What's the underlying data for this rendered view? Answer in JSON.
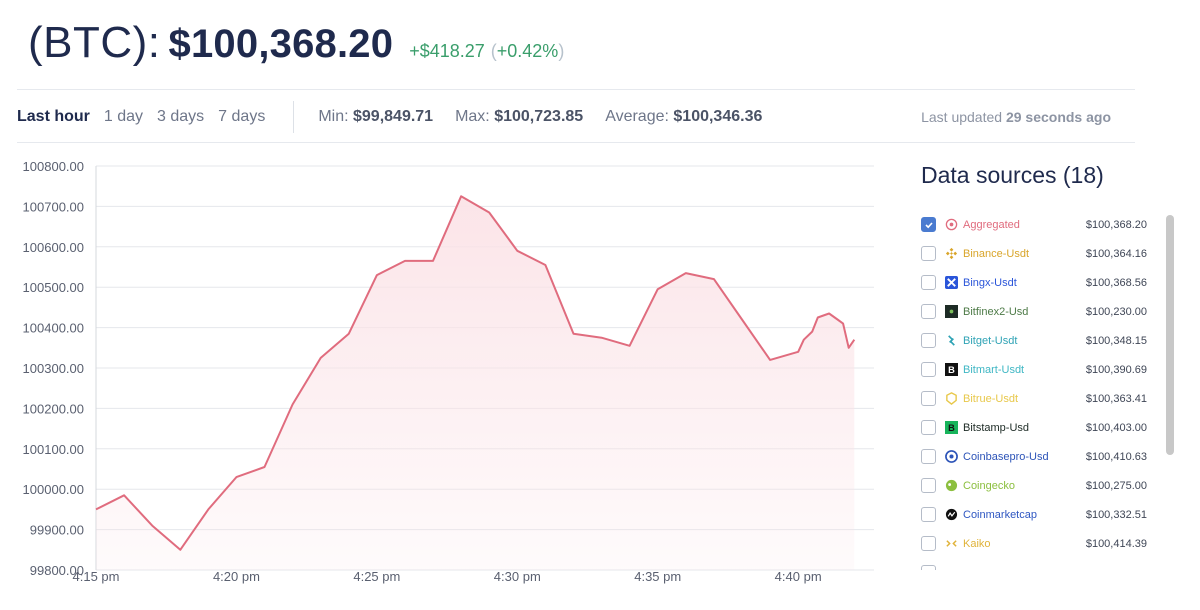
{
  "header": {
    "symbol": "(BTC):",
    "price": "$100,368.20",
    "change": "+$418.27",
    "pct_open": "(",
    "pct": "+0.42%",
    "pct_close": ")"
  },
  "toolbar": {
    "timeframes": [
      "Last hour",
      "1 day",
      "3 days",
      "7 days"
    ],
    "min_label": "Min:",
    "min_value": "$99,849.71",
    "max_label": "Max:",
    "max_value": "$100,723.85",
    "avg_label": "Average:",
    "avg_value": "$100,346.36",
    "updated_label": "Last updated",
    "updated_value": "29 seconds ago"
  },
  "chart_data": {
    "type": "area",
    "title": "",
    "xlabel": "",
    "ylabel": "",
    "ylim": [
      99800,
      100800
    ],
    "xlim": [
      0,
      27.7
    ],
    "y_ticks": [
      "100800.00",
      "100700.00",
      "100600.00",
      "100500.00",
      "100400.00",
      "100300.00",
      "100200.00",
      "100100.00",
      "100000.00",
      "99900.00",
      "99800.00"
    ],
    "x_ticks": [
      {
        "label": "4:15 pm",
        "x": 0
      },
      {
        "label": "4:20 pm",
        "x": 5
      },
      {
        "label": "4:25 pm",
        "x": 10
      },
      {
        "label": "4:30 pm",
        "x": 15
      },
      {
        "label": "4:35 pm",
        "x": 20
      },
      {
        "label": "4:40 pm",
        "x": 25
      }
    ],
    "line_color": "#e06c7e",
    "fill_color": "#fbe3e7",
    "series": [
      {
        "name": "Aggregated",
        "x": [
          0,
          1,
          2,
          3,
          4,
          5,
          6,
          7,
          8,
          9,
          10,
          11,
          12,
          13,
          14,
          15,
          16,
          17,
          18,
          19,
          20,
          21,
          22,
          23,
          24,
          25,
          25.2,
          25.5,
          25.7,
          25.9,
          26.1,
          26.4,
          26.6,
          26.8,
          27.0
        ],
        "y": [
          99950,
          99985,
          99910,
          99850,
          99950,
          100030,
          100055,
          100210,
          100325,
          100385,
          100530,
          100565,
          100565,
          100725,
          100685,
          100590,
          100555,
          100385,
          100375,
          100355,
          100495,
          100535,
          100520,
          100420,
          100320,
          100340,
          100370,
          100390,
          100425,
          100430,
          100435,
          100420,
          100410,
          100350,
          100370
        ]
      }
    ]
  },
  "sources": {
    "title": "Data sources (18)",
    "items": [
      {
        "name": "Aggregated",
        "value": "$100,368.20",
        "color": "#e06c7e",
        "checked": true,
        "icon": "aggregated-icon"
      },
      {
        "name": "Binance-Usdt",
        "value": "$100,364.16",
        "color": "#d9a52a",
        "checked": false,
        "icon": "binance-icon"
      },
      {
        "name": "Bingx-Usdt",
        "value": "$100,368.56",
        "color": "#2a55d9",
        "checked": false,
        "icon": "bingx-icon"
      },
      {
        "name": "Bitfinex2-Usd",
        "value": "$100,230.00",
        "color": "#4d7a47",
        "checked": false,
        "icon": "bitfinex-icon"
      },
      {
        "name": "Bitget-Usdt",
        "value": "$100,348.15",
        "color": "#2fa3b5",
        "checked": false,
        "icon": "bitget-icon"
      },
      {
        "name": "Bitmart-Usdt",
        "value": "$100,390.69",
        "color": "#3fb7c4",
        "checked": false,
        "icon": "bitmart-icon"
      },
      {
        "name": "Bitrue-Usdt",
        "value": "$100,363.41",
        "color": "#e8c84a",
        "checked": false,
        "icon": "bitrue-icon"
      },
      {
        "name": "Bitstamp-Usd",
        "value": "$100,403.00",
        "color": "#1d2b25",
        "checked": false,
        "icon": "bitstamp-icon"
      },
      {
        "name": "Coinbasepro-Usd",
        "value": "$100,410.63",
        "color": "#2d54b8",
        "checked": false,
        "icon": "coinbase-icon"
      },
      {
        "name": "Coingecko",
        "value": "$100,275.00",
        "color": "#8cbf3f",
        "checked": false,
        "icon": "coingecko-icon"
      },
      {
        "name": "Coinmarketcap",
        "value": "$100,332.51",
        "color": "#2f57c2",
        "checked": false,
        "icon": "coinmarketcap-icon"
      },
      {
        "name": "Kaiko",
        "value": "$100,414.39",
        "color": "#e0b33a",
        "checked": false,
        "icon": "kaiko-icon"
      },
      {
        "name": "",
        "value": "",
        "color": "#cccccc",
        "checked": false,
        "icon": "partial-row"
      }
    ]
  }
}
